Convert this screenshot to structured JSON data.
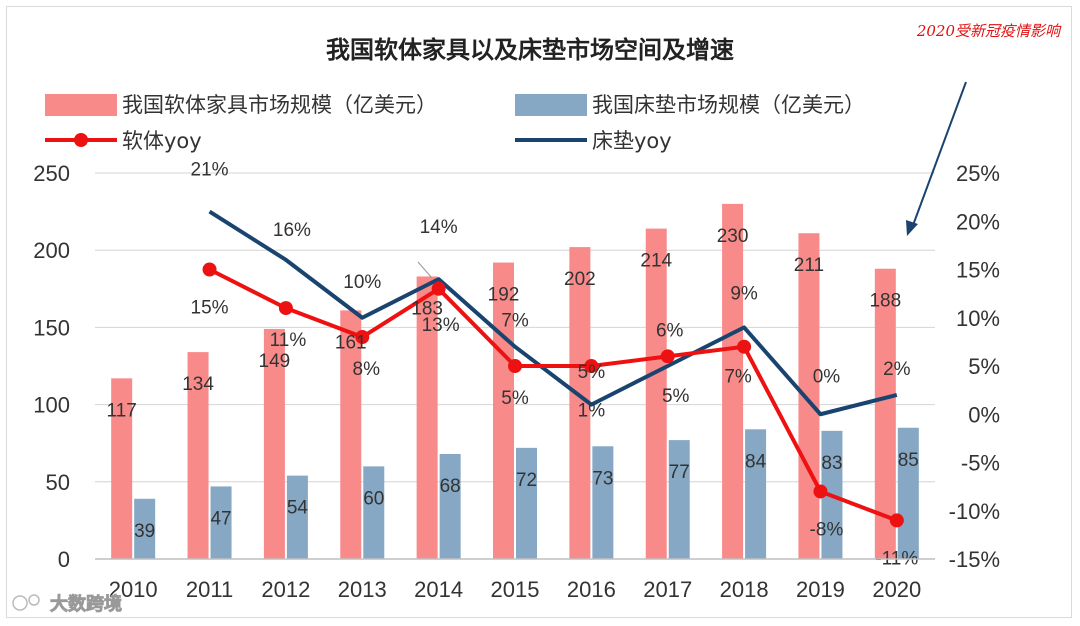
{
  "chart_data": {
    "type": "bar",
    "title": "我国软体家具以及床垫市场空间及增速",
    "categories": [
      "2010",
      "2011",
      "2012",
      "2013",
      "2014",
      "2015",
      "2016",
      "2017",
      "2018",
      "2019",
      "2020"
    ],
    "series": [
      {
        "name": "我国软体家具市场规模（亿美元）",
        "type": "bar",
        "axis": "left",
        "color": "#f98a8a",
        "values": [
          117,
          134,
          149,
          161,
          183,
          192,
          202,
          214,
          230,
          211,
          188
        ]
      },
      {
        "name": "我国床垫市场规模（亿美元）",
        "type": "bar",
        "axis": "left",
        "color": "#86a8c4",
        "values": [
          39,
          47,
          54,
          60,
          68,
          72,
          73,
          77,
          84,
          83,
          85
        ]
      },
      {
        "name": "软体yoy",
        "type": "line",
        "axis": "right",
        "color": "#ee1111",
        "marker": "circle",
        "values": [
          null,
          15,
          11,
          8,
          13,
          5,
          5,
          6,
          7,
          -8,
          -11
        ],
        "labels": [
          "",
          "15%",
          "11%",
          "8%",
          "13%",
          "5%",
          "5%",
          "6%",
          "7%",
          "-8%",
          "-11%"
        ]
      },
      {
        "name": "床垫yoy",
        "type": "line",
        "axis": "right",
        "color": "#1a4470",
        "values": [
          null,
          21,
          16,
          10,
          14,
          7,
          1,
          5,
          9,
          0,
          2
        ],
        "labels": [
          "",
          "21%",
          "16%",
          "10%",
          "14%",
          "7%",
          "1%",
          "5%",
          "9%",
          "0%",
          "2%"
        ]
      }
    ],
    "y_left": {
      "min": 0,
      "max": 250,
      "ticks": [
        0,
        50,
        100,
        150,
        200,
        250
      ]
    },
    "y_right": {
      "min": -15,
      "max": 25,
      "ticks": [
        -15,
        -10,
        -5,
        0,
        5,
        10,
        15,
        20,
        25
      ],
      "tick_labels": [
        "-15%",
        "-10%",
        "-5%",
        "0%",
        "5%",
        "10%",
        "15%",
        "20%",
        "25%"
      ]
    },
    "grid": true,
    "legend_position": "top",
    "annotation": {
      "text": "2020受新冠疫情影响",
      "color": "#e01010"
    }
  },
  "watermark": {
    "text": "大数跨境"
  }
}
